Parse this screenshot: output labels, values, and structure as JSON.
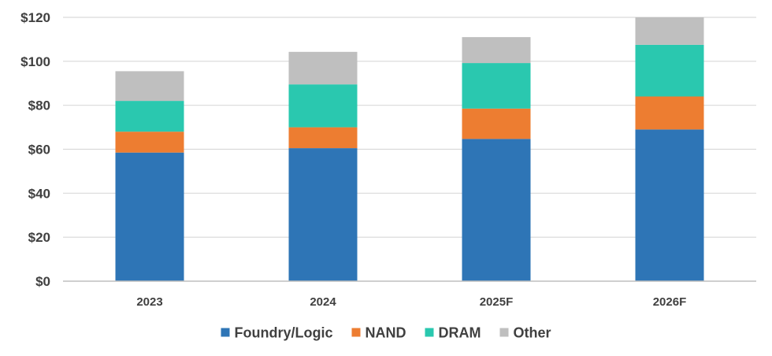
{
  "chart_data": {
    "type": "bar",
    "stacked": true,
    "categories": [
      "2023",
      "2024",
      "2025F",
      "2026F"
    ],
    "series": [
      {
        "name": "Foundry/Logic",
        "color": "#2e75b6",
        "values": [
          58.5,
          60.5,
          64.7,
          69
        ]
      },
      {
        "name": "NAND",
        "color": "#ed7d31",
        "values": [
          9.5,
          9.5,
          13.8,
          15
        ]
      },
      {
        "name": "DRAM",
        "color": "#2ac8af",
        "values": [
          14,
          19.5,
          20.7,
          23.5
        ]
      },
      {
        "name": "Other",
        "color": "#bfbfbf",
        "values": [
          13.5,
          14.8,
          11.8,
          12.5
        ]
      }
    ],
    "y_ticks": [
      "$0",
      "$20",
      "$40",
      "$60",
      "$80",
      "$100",
      "$120"
    ],
    "ylim": [
      0,
      120
    ],
    "grid": true,
    "legend_position": "bottom",
    "title": "",
    "xlabel": "",
    "ylabel": ""
  }
}
